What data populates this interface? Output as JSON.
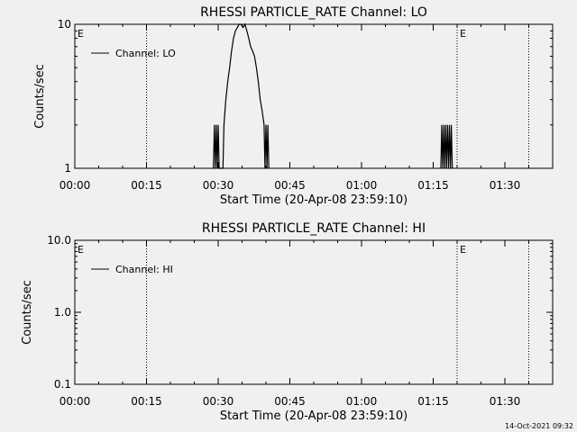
{
  "chart_data": [
    {
      "type": "line",
      "title": "RHESSI PARTICLE_RATE Channel: LO",
      "xlabel": "Start Time (20-Apr-08 23:59:10)",
      "ylabel": "Counts/sec",
      "yscale": "log",
      "ylim": [
        1,
        10
      ],
      "xlim_minutes": [
        0,
        100
      ],
      "xticks": [
        "00:00",
        "00:15",
        "00:30",
        "00:45",
        "01:00",
        "01:15",
        "01:30"
      ],
      "xtick_minutes": [
        0,
        15,
        30,
        45,
        60,
        75,
        90
      ],
      "yticks": [
        "1",
        "10"
      ],
      "ytick_values": [
        1,
        10
      ],
      "legend": "Channel: LO",
      "legend_position": "top-left",
      "vlines_minutes": [
        15,
        80,
        95
      ],
      "markers": [
        {
          "label": "E",
          "minute": 0
        },
        {
          "label": "E",
          "minute": 80
        }
      ],
      "series": [
        {
          "name": "Channel: LO",
          "points": [
            [
              29.0,
              1
            ],
            [
              29.2,
              2
            ],
            [
              29.4,
              1
            ],
            [
              29.6,
              2
            ],
            [
              29.8,
              1
            ],
            [
              30.0,
              2
            ],
            [
              30.2,
              1
            ],
            [
              31.0,
              1
            ],
            [
              31.2,
              2
            ],
            [
              31.6,
              3
            ],
            [
              32.0,
              4
            ],
            [
              32.4,
              5
            ],
            [
              32.8,
              6.5
            ],
            [
              33.2,
              8
            ],
            [
              33.6,
              9
            ],
            [
              34.0,
              9.5
            ],
            [
              34.4,
              10
            ],
            [
              34.8,
              10
            ],
            [
              35.2,
              9.5
            ],
            [
              35.6,
              10
            ],
            [
              36.0,
              9
            ],
            [
              36.4,
              8
            ],
            [
              36.8,
              7
            ],
            [
              37.2,
              6.5
            ],
            [
              37.6,
              6
            ],
            [
              38.0,
              5
            ],
            [
              38.4,
              4
            ],
            [
              38.8,
              3
            ],
            [
              39.2,
              2.5
            ],
            [
              39.6,
              2
            ],
            [
              39.8,
              1
            ],
            [
              40.0,
              2
            ],
            [
              40.2,
              1
            ],
            [
              40.4,
              2
            ],
            [
              40.6,
              1
            ],
            [
              76.6,
              1
            ],
            [
              76.8,
              2
            ],
            [
              77.0,
              1
            ],
            [
              77.2,
              2
            ],
            [
              77.4,
              1
            ],
            [
              77.6,
              2
            ],
            [
              77.8,
              1
            ],
            [
              78.0,
              2
            ],
            [
              78.2,
              1
            ],
            [
              78.4,
              2
            ],
            [
              78.6,
              1
            ],
            [
              78.8,
              2
            ],
            [
              79.0,
              1
            ]
          ]
        }
      ]
    },
    {
      "type": "line",
      "title": "RHESSI PARTICLE_RATE Channel: HI",
      "xlabel": "Start Time (20-Apr-08 23:59:10)",
      "ylabel": "Counts/sec",
      "yscale": "log",
      "ylim": [
        0.1,
        10
      ],
      "xlim_minutes": [
        0,
        100
      ],
      "xticks": [
        "00:00",
        "00:15",
        "00:30",
        "00:45",
        "01:00",
        "01:15",
        "01:30"
      ],
      "xtick_minutes": [
        0,
        15,
        30,
        45,
        60,
        75,
        90
      ],
      "yticks": [
        "0.1",
        "1.0",
        "10.0"
      ],
      "ytick_values": [
        0.1,
        1,
        10
      ],
      "legend": "Channel: HI",
      "legend_position": "top-left",
      "vlines_minutes": [
        15,
        80,
        95
      ],
      "markers": [
        {
          "label": "E",
          "minute": 0
        },
        {
          "label": "E",
          "minute": 80
        }
      ],
      "series": [
        {
          "name": "Channel: HI",
          "points": []
        }
      ]
    }
  ],
  "footer": {
    "timestamp": "14-Oct-2021 09:32"
  }
}
